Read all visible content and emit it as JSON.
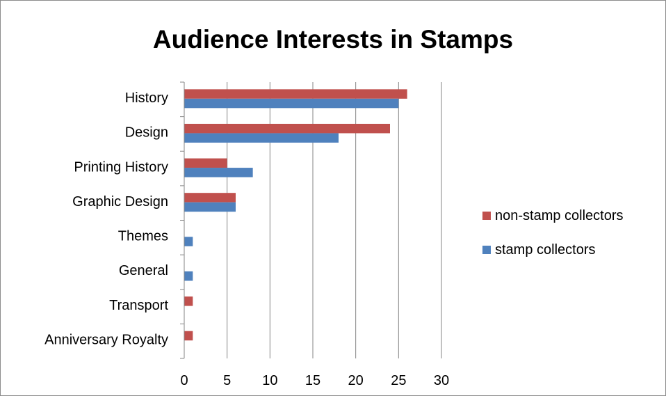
{
  "chart_data": {
    "type": "bar",
    "orientation": "horizontal",
    "title": "Audience Interests in Stamps",
    "categories": [
      "History",
      "Design",
      "Printing History",
      "Graphic Design",
      "Themes",
      "General",
      "Transport",
      "Anniversary Royalty"
    ],
    "series": [
      {
        "name": "non-stamp collectors",
        "color": "#c0504d",
        "values": [
          26,
          24,
          5,
          6,
          0,
          0,
          1,
          1
        ]
      },
      {
        "name": "stamp collectors",
        "color": "#4f81bd",
        "values": [
          25,
          18,
          8,
          6,
          1,
          1,
          0,
          0
        ]
      }
    ],
    "xlim": [
      0,
      30
    ],
    "xticks": [
      "0",
      "5",
      "10",
      "15",
      "20",
      "25",
      "30"
    ],
    "grid": true,
    "legend_position": "right"
  }
}
